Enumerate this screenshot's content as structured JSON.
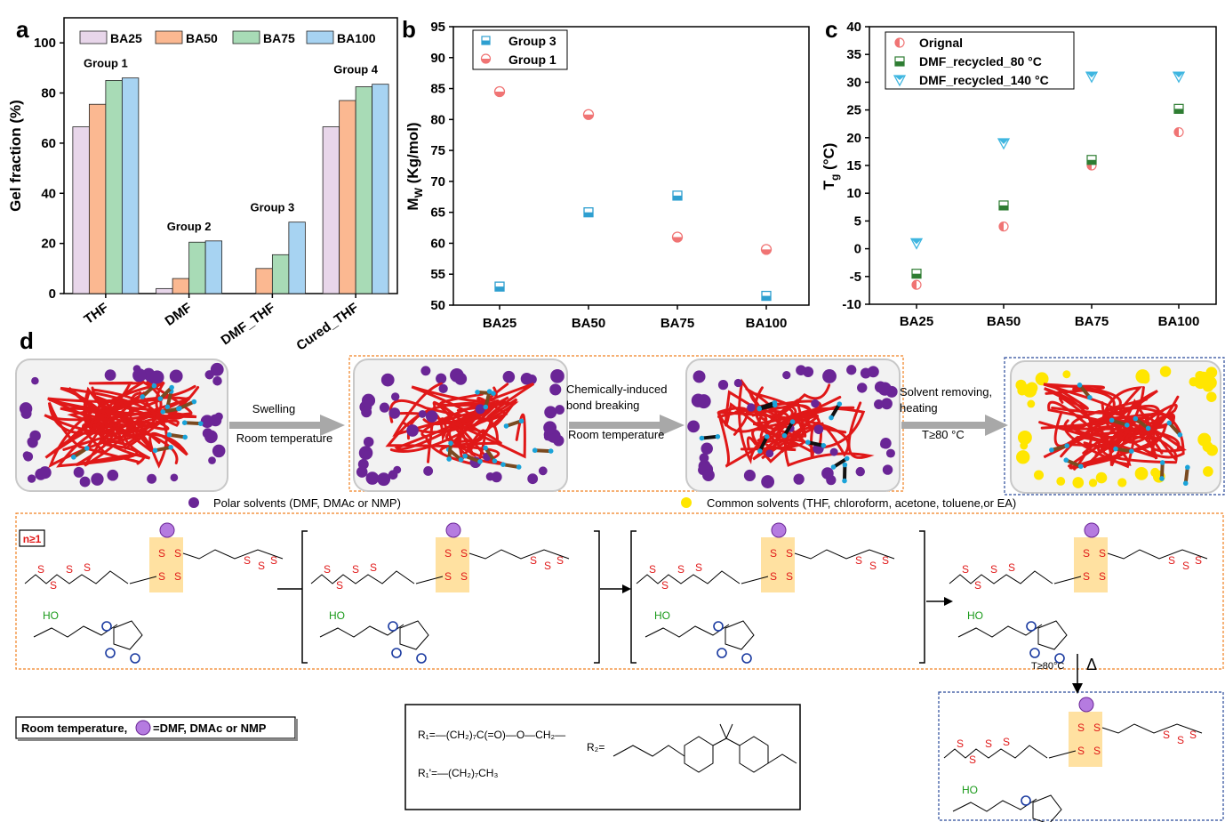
{
  "panel_labels": {
    "a": "a",
    "b": "b",
    "c": "c",
    "d": "d"
  },
  "colors": {
    "BA25": "#e8d6ea",
    "BA50": "#fbb891",
    "BA75": "#a8dbb6",
    "BA100": "#a7d3f2",
    "group3": "#2e9fd0",
    "group1": "#f07474",
    "orig": "#f07474",
    "r80": "#2e7d32",
    "r140": "#3fb6e0",
    "chain": "#e01818",
    "polar": "#6a2596",
    "common": "#ffe600"
  },
  "chart_data": [
    {
      "type": "bar",
      "categories": [
        "THF",
        "DMF",
        "DMF_THF",
        "Cured_THF"
      ],
      "series": [
        {
          "name": "BA25",
          "values": [
            66.5,
            2,
            0,
            66.5
          ]
        },
        {
          "name": "BA50",
          "values": [
            75.5,
            6,
            10,
            77
          ]
        },
        {
          "name": "BA75",
          "values": [
            85,
            20.5,
            15.5,
            82.5
          ]
        },
        {
          "name": "BA100",
          "values": [
            86,
            21,
            28.5,
            83.5
          ]
        }
      ],
      "annotations": [
        "Group 1",
        "Group 2",
        "Group 3",
        "Group 4"
      ],
      "xlabel": "",
      "ylabel": "Gel fraction (%)",
      "ylim": [
        0,
        110
      ],
      "yticks": [
        "0",
        "20",
        "40",
        "60",
        "80",
        "100"
      ],
      "legend": "top"
    },
    {
      "type": "scatter",
      "categories": [
        "BA25",
        "BA50",
        "BA75",
        "BA100"
      ],
      "series": [
        {
          "name": "Group 3",
          "values": [
            53,
            65,
            67.7,
            51.5
          ]
        },
        {
          "name": "Group 1",
          "values": [
            84.5,
            80.8,
            61,
            59
          ]
        }
      ],
      "xlabel": "",
      "ylabel": "M_W (Kg/mol)",
      "ylim": [
        50,
        95
      ],
      "yticks": [
        "50",
        "55",
        "60",
        "65",
        "70",
        "75",
        "80",
        "85",
        "90",
        "95"
      ],
      "legend": "top-left"
    },
    {
      "type": "scatter",
      "categories": [
        "BA25",
        "BA50",
        "BA75",
        "BA100"
      ],
      "series": [
        {
          "name": "Orignal",
          "values": [
            -6.5,
            4,
            15,
            21
          ]
        },
        {
          "name": "DMF_recycled_80 °C",
          "values": [
            -4.5,
            7.8,
            16,
            25.2
          ]
        },
        {
          "name": "DMF_recycled_140 °C",
          "values": [
            1,
            19,
            31,
            31
          ]
        }
      ],
      "xlabel": "",
      "ylabel": "T_g (°C)",
      "ylim": [
        -10,
        40
      ],
      "yticks": [
        "-10",
        "-5",
        "0",
        "5",
        "10",
        "15",
        "20",
        "25",
        "30",
        "35",
        "40"
      ],
      "legend": "top-left"
    }
  ],
  "axis_text": {
    "ylabel_b_main": "M",
    "ylabel_b_sub": "W",
    "ylabel_b_rest": " (Kg/mol)",
    "ylabel_c_main": "T",
    "ylabel_c_sub": "g",
    "ylabel_c_rest": " (°C)"
  },
  "schematic": {
    "step1_top": "Swelling",
    "step1_bottom": "Room temperature",
    "step2_top1": "Chemically-induced",
    "step2_top2": "bond breaking",
    "step2_bottom": "Room temperature",
    "step3_top1": "Solvent removing,",
    "step3_top2": "heating",
    "step3_bottom": "T≥80 °C",
    "polar_legend": "Polar solvents (DMF, DMAc or NMP)",
    "common_legend": "Common solvents (THF, chloroform, acetone, toluene,or EA)",
    "n_label": "n≥1",
    "rt_note_prefix": "Room temperature,",
    "rt_note_suffix": "=DMF, DMAc or NMP",
    "heat_label": "T≥80°C",
    "delta": "Δ",
    "R1_def": "R₁=—(CH₂)₇C(=O)—O—CH₂—",
    "R1p_def": "R₁'=—(CH₂)₇CH₃",
    "R2_label": "R₂="
  }
}
